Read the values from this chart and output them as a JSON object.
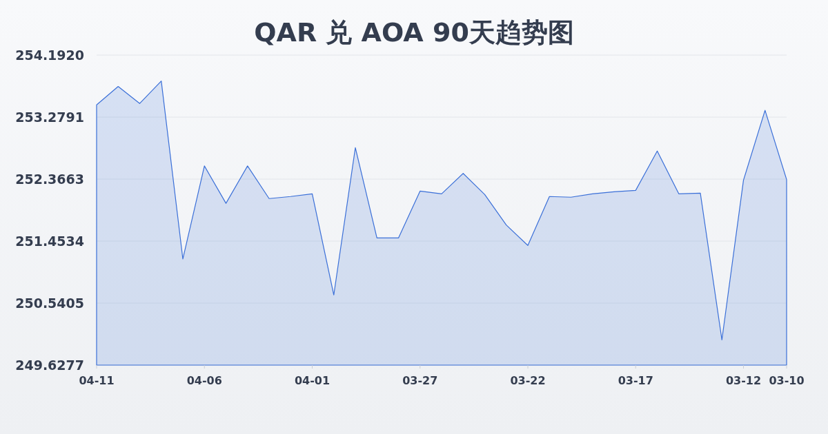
{
  "chart_data": {
    "type": "area",
    "title": "QAR 兑 AOA 90天趋势图",
    "categories": [
      "04-11",
      null,
      null,
      null,
      null,
      "04-06",
      null,
      null,
      null,
      null,
      "04-01",
      null,
      null,
      null,
      null,
      "03-27",
      null,
      null,
      null,
      null,
      "03-22",
      null,
      null,
      null,
      null,
      "03-17",
      null,
      null,
      null,
      null,
      "03-12",
      null,
      "03-10"
    ],
    "series": [
      {
        "color": "#3a6fd8",
        "values": [
          253.46,
          253.73,
          253.48,
          253.81,
          251.19,
          252.56,
          252.01,
          252.56,
          252.08,
          252.11,
          252.15,
          250.66,
          252.83,
          251.5,
          251.5,
          252.19,
          252.15,
          252.45,
          252.14,
          251.69,
          251.39,
          252.11,
          252.1,
          252.15,
          252.18,
          252.2,
          252.78,
          252.15,
          252.16,
          250.0,
          252.35,
          253.38,
          252.36
        ]
      }
    ],
    "ylim": [
      249.6277,
      254.192
    ],
    "yticks": [
      249.6277,
      250.5405,
      251.4534,
      252.3663,
      253.2791,
      {
        "value": 254.192,
        "label": "254.1920"
      }
    ],
    "grid": "y"
  }
}
